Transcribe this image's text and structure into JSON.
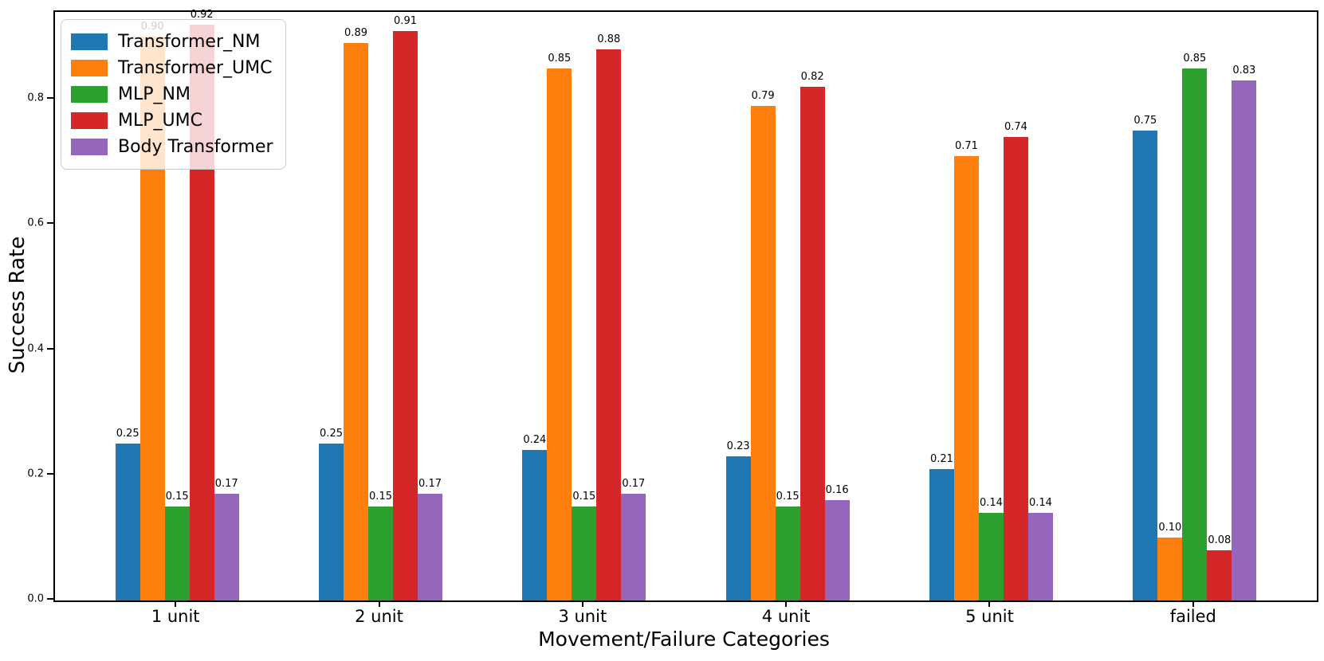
{
  "chart_data": {
    "type": "bar",
    "title": "",
    "xlabel": "Movement/Failure Categories",
    "ylabel": "Success Rate",
    "categories": [
      "1 unit",
      "2 unit",
      "3 unit",
      "4 unit",
      "5 unit",
      "failed"
    ],
    "series": [
      {
        "name": "Transformer_NM",
        "color": "#1f77b4",
        "values": [
          0.25,
          0.25,
          0.24,
          0.23,
          0.21,
          0.75
        ]
      },
      {
        "name": "Transformer_UMC",
        "color": "#ff7f0e",
        "values": [
          0.9,
          0.89,
          0.85,
          0.79,
          0.71,
          0.1
        ]
      },
      {
        "name": "MLP_NM",
        "color": "#2ca02c",
        "values": [
          0.15,
          0.15,
          0.15,
          0.15,
          0.14,
          0.85
        ]
      },
      {
        "name": "MLP_UMC",
        "color": "#d62728",
        "values": [
          0.92,
          0.91,
          0.88,
          0.82,
          0.74,
          0.08
        ]
      },
      {
        "name": "Body Transformer",
        "color": "#9467bd",
        "values": [
          0.17,
          0.17,
          0.17,
          0.16,
          0.14,
          0.83
        ]
      }
    ],
    "bar_value_label_decimals": 2,
    "yticks": [
      0.0,
      0.2,
      0.4,
      0.6,
      0.8
    ],
    "ylim": [
      0,
      0.94
    ],
    "grid": false,
    "legend_position": "top-left",
    "axis_color": "#000000",
    "background_color": "#ffffff"
  }
}
